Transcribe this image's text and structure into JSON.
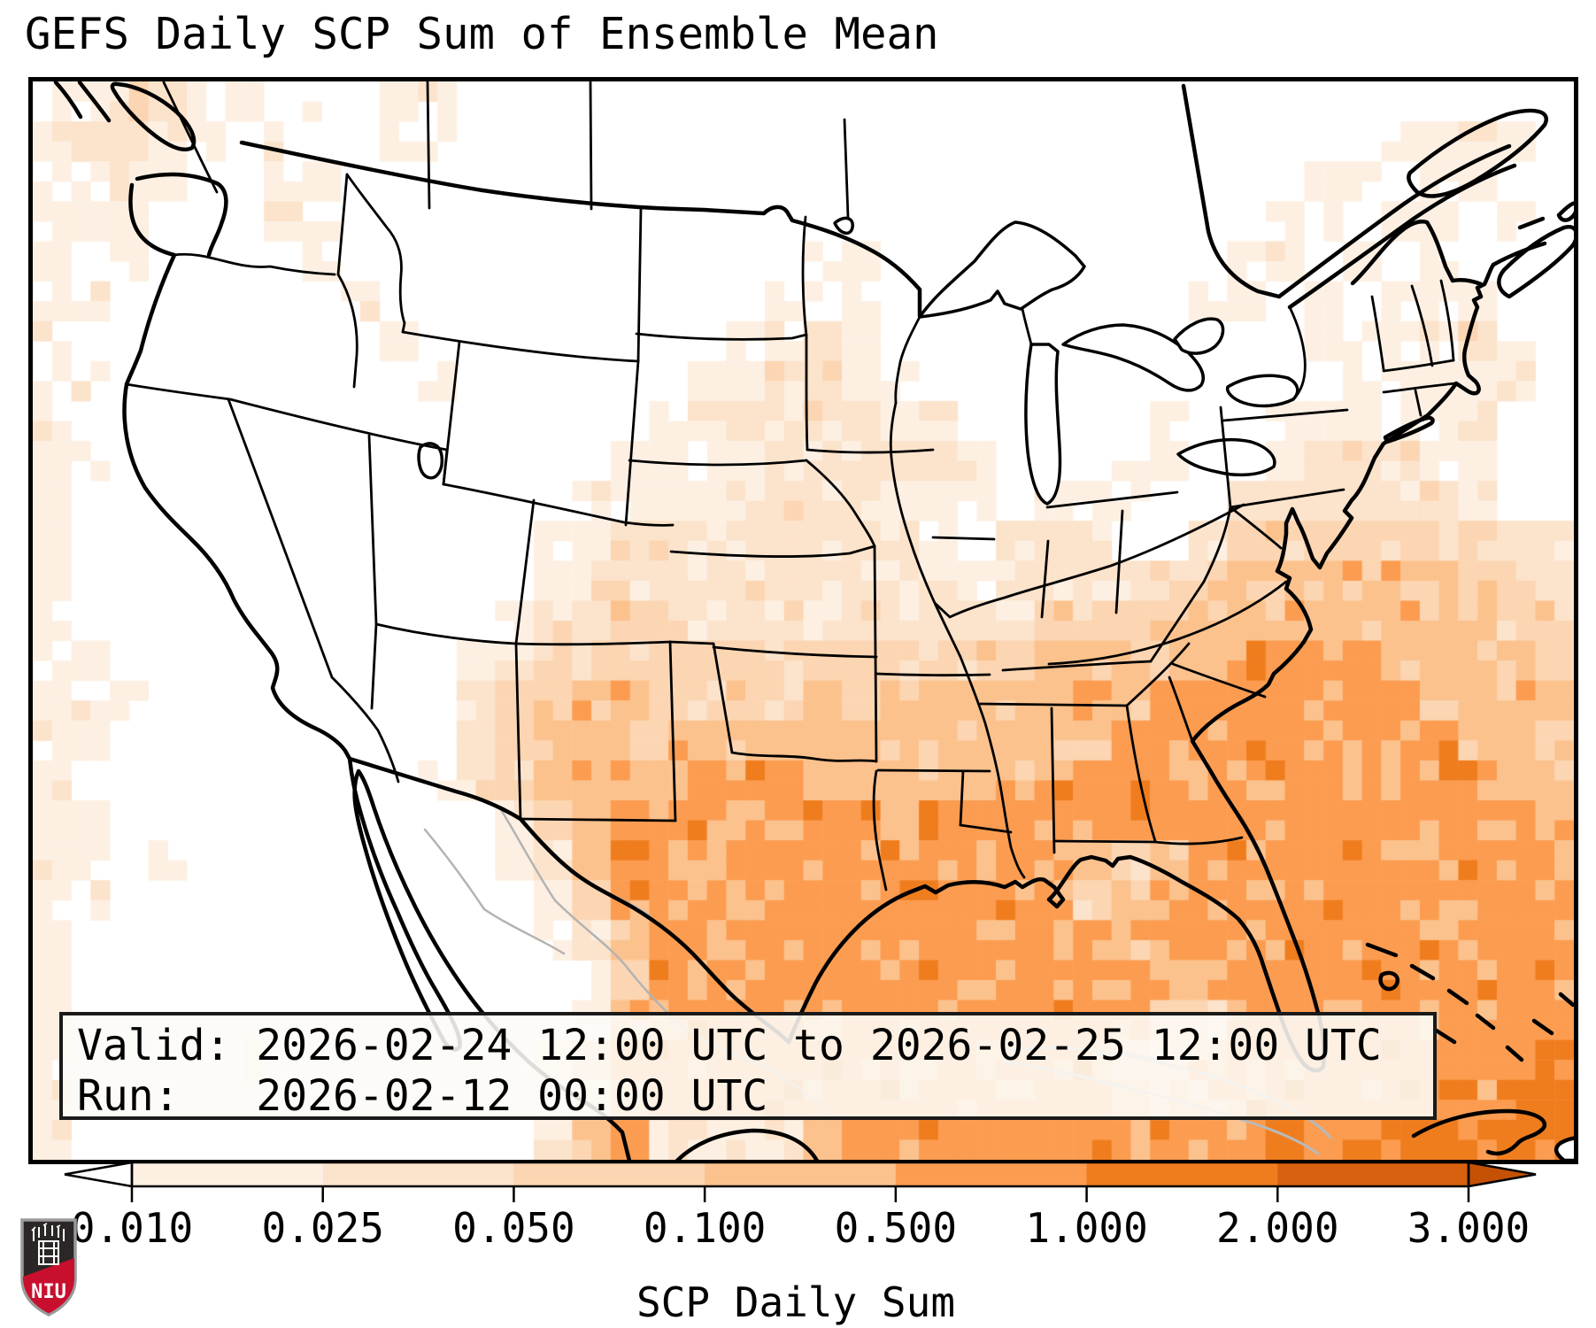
{
  "title": "GEFS Daily SCP Sum of Ensemble Mean",
  "map": {
    "info_box": {
      "valid_line": "Valid: 2026-02-24 12:00 UTC to 2026-02-25 12:00 UTC",
      "run_line": "Run:   2026-02-12 00:00 UTC"
    }
  },
  "colorbar": {
    "label": "SCP Daily Sum",
    "tick_labels": [
      "0.010",
      "0.025",
      "0.050",
      "0.100",
      "0.500",
      "1.000",
      "2.000",
      "3.000"
    ],
    "segment_colors": [
      "#fdf0e3",
      "#fce3cb",
      "#fcd5b2",
      "#fcc28d",
      "#fb9c50",
      "#ef7d1e",
      "#d8610f"
    ],
    "under_color": "#ffffff",
    "over_color": "#c45104",
    "outline_color": "#000000"
  },
  "logo": {
    "text": "NIU",
    "shield_dark": "#2b2726",
    "shield_red": "#c8102e",
    "shield_trim": "#9a9a9a"
  },
  "chart_data": {
    "type": "heatmap",
    "title": "GEFS Daily SCP Sum of Ensemble Mean",
    "variable_label": "SCP Daily Sum",
    "valid_start": "2026-02-24 12:00 UTC",
    "valid_end": "2026-02-25 12:00 UTC",
    "run": "2026-02-12 00:00 UTC",
    "scale_boundaries": [
      0.01,
      0.025,
      0.05,
      0.1,
      0.5,
      1.0,
      2.0,
      3.0
    ],
    "legend_note": "grid levels: 0 below 0.010 (white); 1..7 = colorbar bins; region spans CONUS/Gulf of Mexico/western Atlantic",
    "grid": {
      "cols": 40,
      "rows": 27,
      "rows_data": [
        "1122110101100000000000000000000000000000",
        "1221101001100000000000000000000000011110",
        "1121001100000000000000000000000001101100",
        "1110002100000000000000000000000011011010",
        "1010000100000000000011000000000110101000",
        "1100000010000000000111000000001101011100",
        "1000000001000000001121000000000001111210",
        "1100000000100000011221100000000000111120",
        "1000000000000000112222110000010011111200",
        "1100000000000001111222221000110012221100",
        "1000000000000011112222111011100222222100",
        "1000000000000112222222210122002333333322",
        "1000000000000122222222221222233444444332",
        "1000000000001223322222222233344444444433",
        "1100000000012333333333333344444555544443",
        "1110000000023344333343444445455555554444",
        "1100000000023444444444444444555555555444",
        "1000000000123444455544444455555555555544",
        "1100000000001345555555455555555555555554",
        "1101000000001245555555555554345555555555",
        "1100000000000135555555555553455555555555",
        "1000000000000124555555555555455555555555",
        "1000000000000013555555555555544555555555",
        "1000000000000014555555555555533555555555",
        "1000010000000135555555555555334555555556",
        "1000000000000014555555555555444555555566",
        "1000000000000145211245555555555565666666"
      ]
    }
  }
}
